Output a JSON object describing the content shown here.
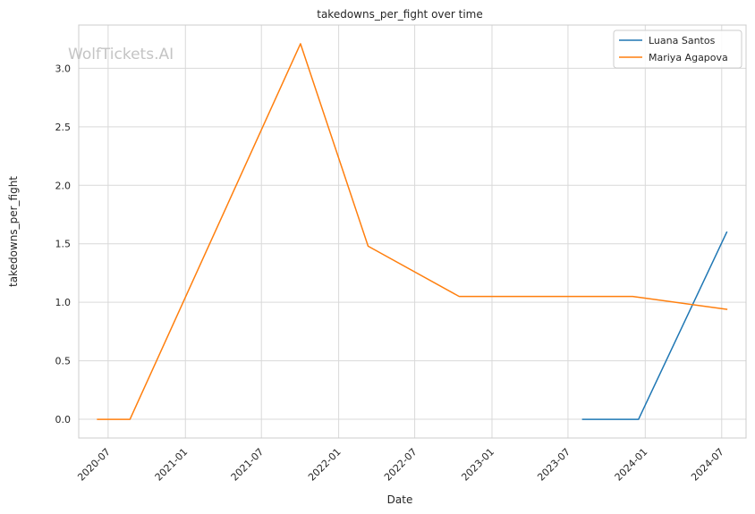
{
  "chart_data": {
    "type": "line",
    "title": "takedowns_per_fight over time",
    "xlabel": "Date",
    "ylabel": "takedowns_per_fight",
    "watermark": "WolfTickets.AI",
    "x_ticks": [
      "2020-07",
      "2021-01",
      "2021-07",
      "2022-01",
      "2022-07",
      "2023-01",
      "2023-07",
      "2024-01",
      "2024-07"
    ],
    "y_ticks": [
      "0.0",
      "0.5",
      "1.0",
      "1.5",
      "2.0",
      "2.5",
      "3.0"
    ],
    "xlim": [
      "2020-04-22",
      "2024-08-28"
    ],
    "ylim": [
      -0.16,
      3.37
    ],
    "grid": true,
    "legend_position": "top-right",
    "series": [
      {
        "name": "Luana Santos",
        "color": "#1f77b4",
        "points": [
          {
            "x": "2023-08-05",
            "y": 0.0
          },
          {
            "x": "2023-12-16",
            "y": 0.0
          },
          {
            "x": "2024-07-13",
            "y": 1.6
          }
        ]
      },
      {
        "name": "Mariya Agapova",
        "color": "#ff7f0e",
        "points": [
          {
            "x": "2020-06-06",
            "y": 0.0
          },
          {
            "x": "2020-08-22",
            "y": 0.0
          },
          {
            "x": "2021-10-02",
            "y": 3.21
          },
          {
            "x": "2022-03-12",
            "y": 1.48
          },
          {
            "x": "2022-10-15",
            "y": 1.05
          },
          {
            "x": "2023-12-02",
            "y": 1.05
          },
          {
            "x": "2024-07-13",
            "y": 0.94
          }
        ]
      }
    ]
  }
}
